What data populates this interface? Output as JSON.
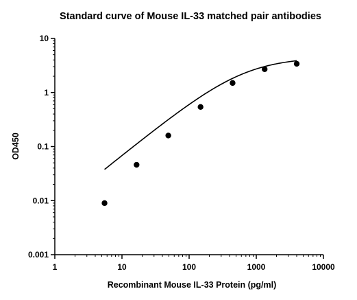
{
  "chart_data": {
    "type": "scatter",
    "title": "Standard curve of Mouse IL-33 matched pair antibodies",
    "xlabel": "Recombinant Mouse IL-33 Protein (pg/ml)",
    "ylabel": "OD450",
    "xscale": "log",
    "yscale": "log",
    "xlim": [
      1,
      10000
    ],
    "ylim": [
      0.001,
      10
    ],
    "x_ticks": [
      1,
      10,
      100,
      1000,
      10000
    ],
    "x_tick_labels": [
      "1",
      "10",
      "100",
      "1000",
      "10000"
    ],
    "y_ticks": [
      0.001,
      0.01,
      0.1,
      1,
      10
    ],
    "y_tick_labels": [
      "0.001",
      "0.01",
      "0.1",
      "1",
      "10"
    ],
    "grid": false,
    "legend": "none",
    "points": {
      "x": [
        5.5,
        16.5,
        49,
        148,
        444,
        1333,
        4000
      ],
      "y": [
        0.009,
        0.046,
        0.16,
        0.54,
        1.5,
        2.7,
        3.4
      ]
    },
    "fit_curve": {
      "model": "4PL",
      "bottom": 0,
      "top": 4.5,
      "ec50": 650,
      "hill": 1.0
    },
    "colors": {
      "points": "#000000",
      "curve": "#000000",
      "axes": "#000000"
    }
  }
}
